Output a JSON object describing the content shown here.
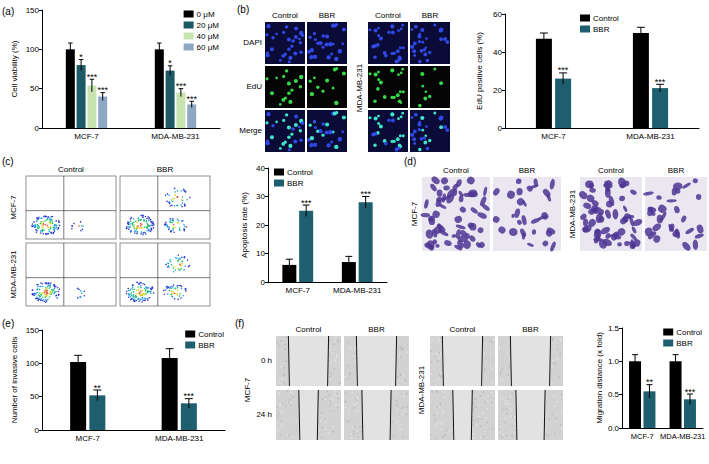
{
  "chart_data": [
    {
      "label": "(a)",
      "type": "bar",
      "y_label": "Cell viability (%)",
      "categories": [
        "MCF-7",
        "MDA-MB-231"
      ],
      "series": [
        {
          "name": "0 μM",
          "color": "#000000",
          "values": [
            100,
            100
          ],
          "errors": [
            8,
            8
          ],
          "significance": [
            null,
            null
          ]
        },
        {
          "name": "20 μM",
          "color": "#1d5a66",
          "values": [
            80,
            73
          ],
          "errors": [
            7,
            6
          ],
          "significance": [
            "*",
            "*"
          ]
        },
        {
          "name": "40 μM",
          "color": "#c6e3b0",
          "values": [
            54,
            45
          ],
          "errors": [
            8,
            5
          ],
          "significance": [
            "***",
            "***"
          ]
        },
        {
          "name": "60 μM",
          "color": "#8ea8c3",
          "values": [
            40,
            30
          ],
          "errors": [
            5,
            4
          ],
          "significance": [
            "***",
            "***"
          ]
        }
      ],
      "ylim": [
        0,
        150
      ],
      "yticks": [
        0,
        50,
        100,
        150
      ],
      "grid": false,
      "legend": "upper right"
    },
    {
      "label": null,
      "type": "bar",
      "y_label": "EdU positive cells (%)",
      "categories": [
        "MCF-7",
        "MDA-MB-231"
      ],
      "series": [
        {
          "name": "Control",
          "color": "#000000",
          "values": [
            47,
            50
          ],
          "errors": [
            3,
            3
          ],
          "significance": [
            null,
            null
          ]
        },
        {
          "name": "BBR",
          "color": "#1d5f6e",
          "values": [
            26,
            21
          ],
          "errors": [
            3,
            2
          ],
          "significance": [
            "***",
            "***"
          ]
        }
      ],
      "ylim": [
        0,
        60
      ],
      "yticks": [
        0,
        20,
        40,
        60
      ],
      "grid": false,
      "legend": "upper center"
    },
    {
      "label": null,
      "type": "bar",
      "y_label": "Apoptosis rate (%)",
      "categories": [
        "MCF-7",
        "MDA-MB-231"
      ],
      "series": [
        {
          "name": "Control",
          "color": "#000000",
          "values": [
            6,
            7
          ],
          "errors": [
            2,
            2
          ],
          "significance": [
            null,
            null
          ]
        },
        {
          "name": "BBR",
          "color": "#1d5f6e",
          "values": [
            25,
            28
          ],
          "errors": [
            2,
            2
          ],
          "significance": [
            "***",
            "***"
          ]
        }
      ],
      "ylim": [
        0,
        40
      ],
      "yticks": [
        0,
        10,
        20,
        30,
        40
      ],
      "grid": false,
      "legend": "upper left"
    },
    {
      "label": "(e)",
      "type": "bar",
      "y_label": "Number of invasive cells",
      "categories": [
        "MCF-7",
        "MDA-MB-231"
      ],
      "series": [
        {
          "name": "Control",
          "color": "#000000",
          "values": [
            102,
            108
          ],
          "errors": [
            10,
            14
          ],
          "significance": [
            null,
            null
          ]
        },
        {
          "name": "BBR",
          "color": "#1d5f6e",
          "values": [
            52,
            40
          ],
          "errors": [
            8,
            7
          ],
          "significance": [
            "**",
            "***"
          ]
        }
      ],
      "ylim": [
        0,
        150
      ],
      "yticks": [
        0,
        50,
        100,
        150
      ],
      "grid": false,
      "legend": "upper right"
    },
    {
      "label": null,
      "type": "bar",
      "y_label": "Migration distance (x fold)",
      "categories": [
        "MCF-7",
        "MDA-MB-231"
      ],
      "series": [
        {
          "name": "Control",
          "color": "#000000",
          "values": [
            1.0,
            1.0
          ],
          "errors": [
            0.1,
            0.1
          ],
          "significance": [
            null,
            null
          ]
        },
        {
          "name": "BBR",
          "color": "#1d5f6e",
          "values": [
            0.55,
            0.43
          ],
          "errors": [
            0.1,
            0.08
          ],
          "significance": [
            "**",
            "***"
          ]
        }
      ],
      "ylim": [
        0,
        1.5
      ],
      "yticks": [
        {
          "value": 0,
          "label": "0.0"
        },
        {
          "value": 0.5,
          "label": "0.5"
        },
        {
          "value": 1,
          "label": "1.0"
        },
        {
          "value": 1.5,
          "label": "1.5"
        }
      ],
      "grid": false,
      "legend": "upper right"
    }
  ],
  "image_panels": [
    {
      "label": "(b)",
      "columns": [
        "Control",
        "BBR"
      ],
      "rows": [
        "DAPI",
        "EdU",
        "Merge"
      ],
      "groups": [
        null,
        "MDA-MB-231"
      ]
    },
    {
      "label": "(c)",
      "columns": [
        "Control",
        "BBR"
      ],
      "groups": [
        "MCF-7",
        "MDA-MB-231"
      ]
    },
    {
      "label": "(d)",
      "columns": [
        "Control",
        "BBR"
      ],
      "groups": [
        "MCF-7",
        "MDA-MB-231"
      ]
    },
    {
      "label": "(f)",
      "columns": [
        "Control",
        "BBR"
      ],
      "rows": [
        "0 h",
        "24 h"
      ],
      "groups": [
        "MCF-7",
        "MDA-MB-231"
      ]
    }
  ]
}
